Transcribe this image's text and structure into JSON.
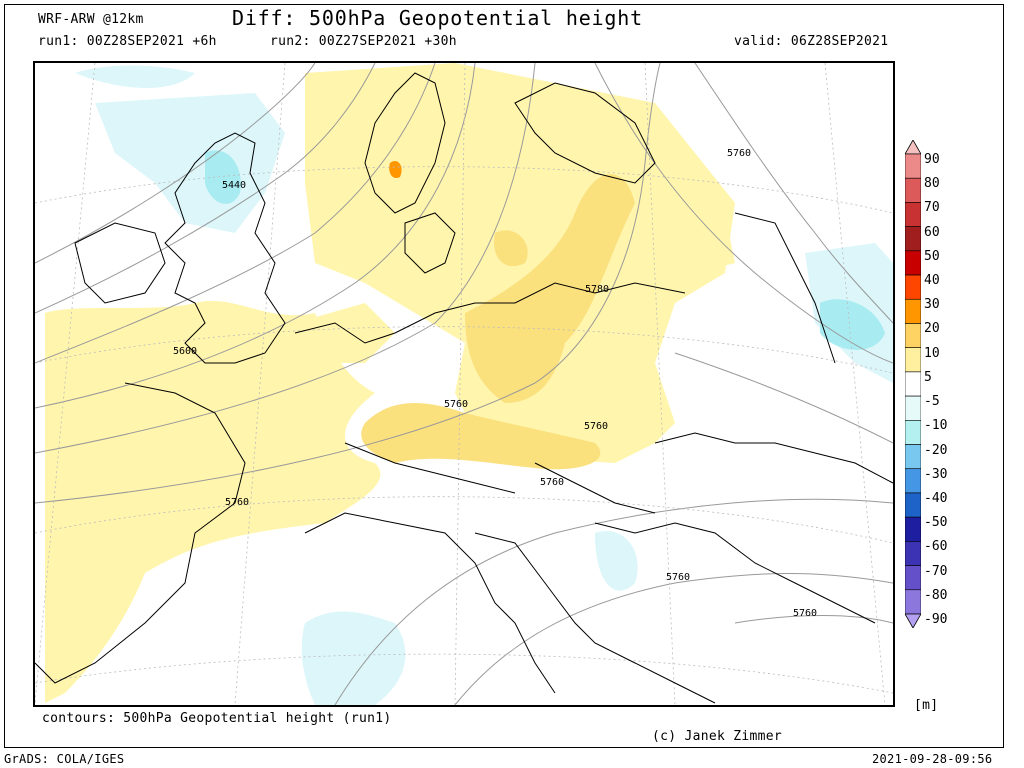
{
  "header": {
    "model": "WRF-ARW @12km",
    "title": "Diff: 500hPa Geopotential height",
    "run1": "run1: 00Z28SEP2021 +6h",
    "run2": "run2: 00Z27SEP2021 +30h",
    "valid": "valid: 06Z28SEP2021"
  },
  "footer": {
    "contours": "contours: 500hPa Geopotential height (run1)",
    "copyright": "(c) Janek Zimmer",
    "software": "GrADS: COLA/IGES",
    "timestamp": "2021-09-28-09:56"
  },
  "colorbar": {
    "unit": "[m]",
    "levels": [
      "90",
      "80",
      "70",
      "60",
      "50",
      "40",
      "30",
      "20",
      "10",
      "5",
      "-5",
      "-10",
      "-20",
      "-30",
      "-40",
      "-50",
      "-60",
      "-70",
      "-80",
      "-90"
    ],
    "colors": [
      "#f4c0c0",
      "#ec8a8a",
      "#dc5a5a",
      "#c83232",
      "#a01e1e",
      "#c80000",
      "#ff4600",
      "#ff9600",
      "#ffd264",
      "#fff0a0",
      "#ffffff",
      "#e6fafa",
      "#b4f0f0",
      "#78c8f0",
      "#4696e6",
      "#1e64c8",
      "#1e1ea0",
      "#3c32b4",
      "#6450c8",
      "#8c78dc",
      "#b4a0f0"
    ]
  },
  "contour_labels": [
    {
      "text": "5440"
    },
    {
      "text": "5600"
    },
    {
      "text": "5760"
    },
    {
      "text": "5760"
    },
    {
      "text": "5780"
    },
    {
      "text": "5760"
    },
    {
      "text": "5760"
    },
    {
      "text": "5760"
    },
    {
      "text": "5760"
    },
    {
      "text": "5760"
    }
  ]
}
